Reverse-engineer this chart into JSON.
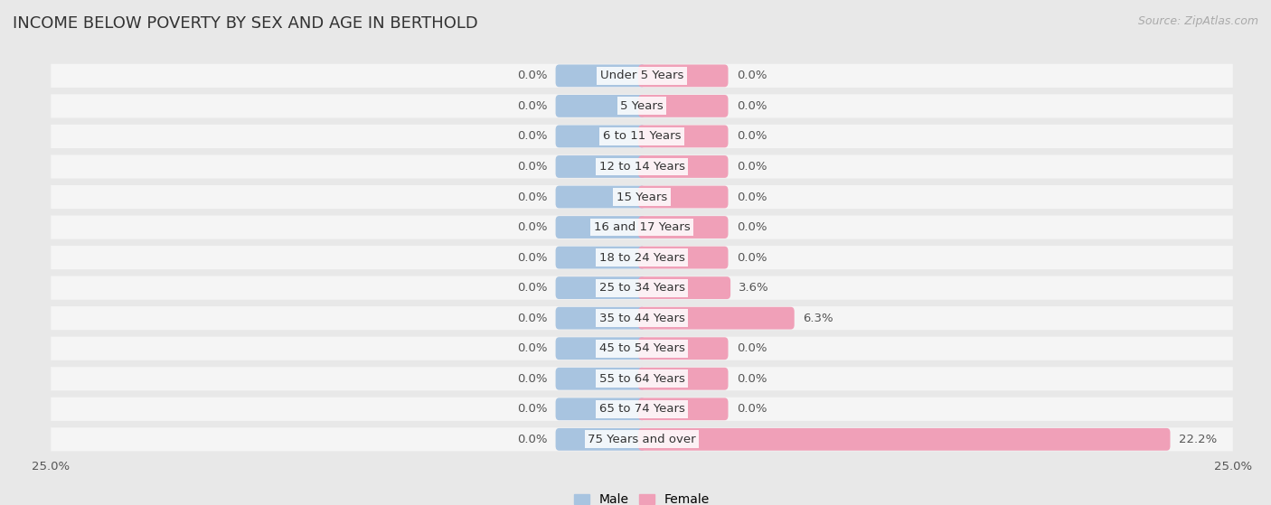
{
  "title": "INCOME BELOW POVERTY BY SEX AND AGE IN BERTHOLD",
  "source": "Source: ZipAtlas.com",
  "categories": [
    "Under 5 Years",
    "5 Years",
    "6 to 11 Years",
    "12 to 14 Years",
    "15 Years",
    "16 and 17 Years",
    "18 to 24 Years",
    "25 to 34 Years",
    "35 to 44 Years",
    "45 to 54 Years",
    "55 to 64 Years",
    "65 to 74 Years",
    "75 Years and over"
  ],
  "male_values": [
    0.0,
    0.0,
    0.0,
    0.0,
    0.0,
    0.0,
    0.0,
    0.0,
    0.0,
    0.0,
    0.0,
    0.0,
    0.0
  ],
  "female_values": [
    0.0,
    0.0,
    0.0,
    0.0,
    0.0,
    0.0,
    0.0,
    3.6,
    6.3,
    0.0,
    0.0,
    0.0,
    22.2
  ],
  "male_color": "#a8c4e0",
  "female_color": "#f0a0b8",
  "axis_limit": 25.0,
  "background_color": "#e8e8e8",
  "row_bg_color": "#f5f5f5",
  "title_fontsize": 13,
  "label_fontsize": 9.5,
  "tick_fontsize": 9.5,
  "source_fontsize": 9,
  "min_bar_width": 3.5
}
